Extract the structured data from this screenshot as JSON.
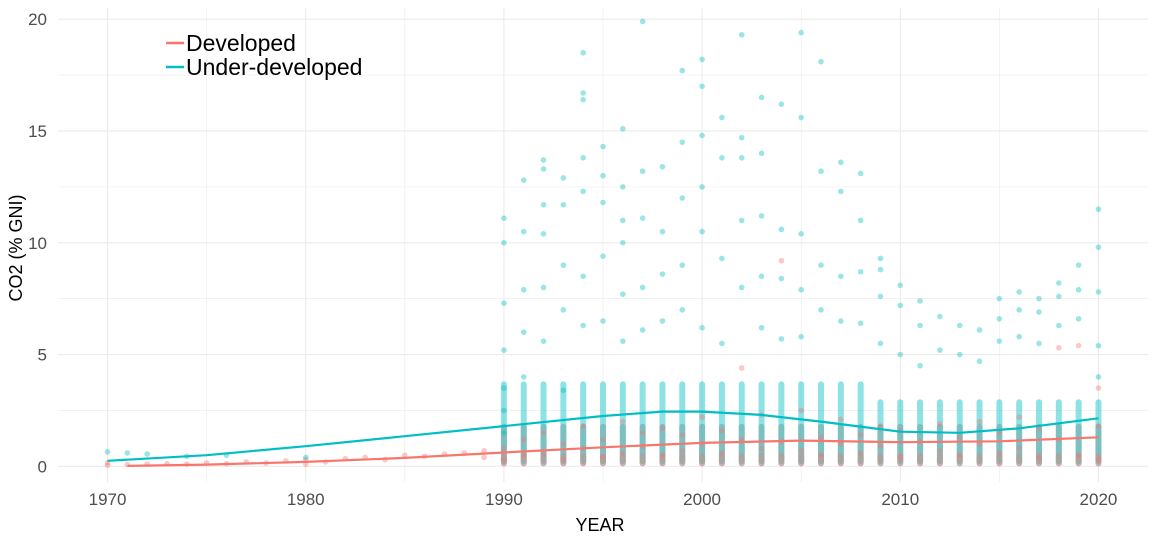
{
  "chart_data": {
    "type": "scatter",
    "xlabel": "YEAR",
    "ylabel": "CO2 (% GNI)",
    "xlim": [
      1967.5,
      2022.5
    ],
    "ylim": [
      -0.7,
      20.5
    ],
    "x_ticks": [
      "1970",
      "1980",
      "1990",
      "2000",
      "2010",
      "2020"
    ],
    "x_tick_values": [
      1970,
      1980,
      1990,
      2000,
      2010,
      2020
    ],
    "y_ticks": [
      "0",
      "5",
      "10",
      "15",
      "20"
    ],
    "y_tick_values": [
      0,
      5,
      10,
      15,
      20
    ],
    "grid": true,
    "legend_position": "top-left",
    "series": [
      {
        "name": "Developed",
        "color": "#F8766D",
        "trend": [
          [
            1971,
            0.02
          ],
          [
            1975,
            0.08
          ],
          [
            1980,
            0.2
          ],
          [
            1985,
            0.38
          ],
          [
            1990,
            0.62
          ],
          [
            1995,
            0.85
          ],
          [
            2000,
            1.05
          ],
          [
            2005,
            1.15
          ],
          [
            2010,
            1.08
          ],
          [
            2015,
            1.12
          ],
          [
            2020,
            1.3
          ]
        ],
        "points": [
          [
            1970,
            0.05
          ],
          [
            1970,
            0.15
          ],
          [
            1971,
            0.08
          ],
          [
            1972,
            0.1
          ],
          [
            1973,
            0.12
          ],
          [
            1974,
            0.1
          ],
          [
            1975,
            0.15
          ],
          [
            1976,
            0.12
          ],
          [
            1977,
            0.2
          ],
          [
            1978,
            0.15
          ],
          [
            1979,
            0.25
          ],
          [
            1980,
            0.1
          ],
          [
            1980,
            0.3
          ],
          [
            1981,
            0.2
          ],
          [
            1982,
            0.35
          ],
          [
            1983,
            0.4
          ],
          [
            1984,
            0.3
          ],
          [
            1985,
            0.5
          ],
          [
            1986,
            0.45
          ],
          [
            1987,
            0.55
          ],
          [
            1988,
            0.6
          ],
          [
            1989,
            0.7
          ],
          [
            1989,
            0.4
          ],
          [
            1990,
            0.3
          ],
          [
            1990,
            0.8
          ],
          [
            1991,
            1.2
          ],
          [
            1991,
            0.5
          ],
          [
            1992,
            0.6
          ],
          [
            1992,
            1.5
          ],
          [
            1993,
            0.3
          ],
          [
            1993,
            1.0
          ],
          [
            1994,
            0.8
          ],
          [
            1994,
            1.8
          ],
          [
            1995,
            0.4
          ],
          [
            1995,
            1.2
          ],
          [
            1996,
            0.6
          ],
          [
            1996,
            2.0
          ],
          [
            1997,
            0.9
          ],
          [
            1997,
            1.5
          ],
          [
            1998,
            0.5
          ],
          [
            1998,
            1.7
          ],
          [
            1999,
            0.7
          ],
          [
            1999,
            1.4
          ],
          [
            2000,
            1.0
          ],
          [
            2000,
            2.2
          ],
          [
            2001,
            0.6
          ],
          [
            2001,
            1.6
          ],
          [
            2002,
            1.2
          ],
          [
            2002,
            4.4
          ],
          [
            2003,
            0.8
          ],
          [
            2003,
            2.3
          ],
          [
            2004,
            9.2
          ],
          [
            2004,
            1.1
          ],
          [
            2005,
            0.7
          ],
          [
            2005,
            2.5
          ],
          [
            2006,
            1.3
          ],
          [
            2006,
            0.5
          ],
          [
            2007,
            1.0
          ],
          [
            2007,
            2.1
          ],
          [
            2008,
            0.6
          ],
          [
            2008,
            1.4
          ],
          [
            2009,
            0.9
          ],
          [
            2009,
            1.8
          ],
          [
            2010,
            0.4
          ],
          [
            2010,
            1.6
          ],
          [
            2011,
            1.1
          ],
          [
            2012,
            0.7
          ],
          [
            2012,
            1.9
          ],
          [
            2013,
            0.5
          ],
          [
            2013,
            1.3
          ],
          [
            2014,
            1.0
          ],
          [
            2014,
            2.0
          ],
          [
            2015,
            0.6
          ],
          [
            2015,
            1.5
          ],
          [
            2016,
            0.8
          ],
          [
            2016,
            2.2
          ],
          [
            2017,
            0.4
          ],
          [
            2017,
            1.7
          ],
          [
            2018,
            1.2
          ],
          [
            2018,
            5.3
          ],
          [
            2019,
            0.5
          ],
          [
            2019,
            5.4
          ],
          [
            2020,
            0.3
          ],
          [
            2020,
            1.8
          ],
          [
            2020,
            3.5
          ]
        ]
      },
      {
        "name": "Under-developed",
        "color": "#00BFC4",
        "trend": [
          [
            1970,
            0.25
          ],
          [
            1975,
            0.5
          ],
          [
            1980,
            0.9
          ],
          [
            1985,
            1.35
          ],
          [
            1990,
            1.8
          ],
          [
            1995,
            2.25
          ],
          [
            1998,
            2.45
          ],
          [
            2000,
            2.45
          ],
          [
            2003,
            2.3
          ],
          [
            2006,
            2.0
          ],
          [
            2010,
            1.55
          ],
          [
            2013,
            1.5
          ],
          [
            2016,
            1.7
          ],
          [
            2020,
            2.15
          ]
        ],
        "points": [
          [
            1970,
            0.65
          ],
          [
            1971,
            0.6
          ],
          [
            1972,
            0.55
          ],
          [
            1974,
            0.45
          ],
          [
            1976,
            0.5
          ],
          [
            1980,
            0.4
          ],
          [
            1990,
            11.1
          ],
          [
            1990,
            10.0
          ],
          [
            1990,
            7.3
          ],
          [
            1990,
            5.2
          ],
          [
            1990,
            3.5
          ],
          [
            1990,
            2.5
          ],
          [
            1990,
            1.5
          ],
          [
            1991,
            12.8
          ],
          [
            1991,
            10.5
          ],
          [
            1991,
            7.9
          ],
          [
            1991,
            6.0
          ],
          [
            1991,
            4.0
          ],
          [
            1992,
            13.7
          ],
          [
            1992,
            13.3
          ],
          [
            1992,
            11.7
          ],
          [
            1992,
            10.4
          ],
          [
            1992,
            8.0
          ],
          [
            1992,
            5.6
          ],
          [
            1993,
            12.9
          ],
          [
            1993,
            11.7
          ],
          [
            1993,
            9.0
          ],
          [
            1993,
            7.0
          ],
          [
            1993,
            3.4
          ],
          [
            1994,
            18.5
          ],
          [
            1994,
            16.7
          ],
          [
            1994,
            16.4
          ],
          [
            1994,
            13.8
          ],
          [
            1994,
            12.3
          ],
          [
            1994,
            8.5
          ],
          [
            1994,
            6.3
          ],
          [
            1995,
            14.3
          ],
          [
            1995,
            13.0
          ],
          [
            1995,
            11.8
          ],
          [
            1995,
            9.4
          ],
          [
            1995,
            6.5
          ],
          [
            1996,
            15.1
          ],
          [
            1996,
            12.5
          ],
          [
            1996,
            11.0
          ],
          [
            1996,
            10.0
          ],
          [
            1996,
            7.7
          ],
          [
            1996,
            5.6
          ],
          [
            1997,
            19.9
          ],
          [
            1997,
            13.2
          ],
          [
            1997,
            11.1
          ],
          [
            1997,
            8.0
          ],
          [
            1997,
            6.1
          ],
          [
            1998,
            13.4
          ],
          [
            1998,
            10.5
          ],
          [
            1998,
            8.6
          ],
          [
            1998,
            6.5
          ],
          [
            1999,
            17.7
          ],
          [
            1999,
            14.5
          ],
          [
            1999,
            12.0
          ],
          [
            1999,
            9.0
          ],
          [
            1999,
            7.0
          ],
          [
            2000,
            18.2
          ],
          [
            2000,
            17.0
          ],
          [
            2000,
            14.8
          ],
          [
            2000,
            12.5
          ],
          [
            2000,
            10.5
          ],
          [
            2000,
            6.2
          ],
          [
            2001,
            15.6
          ],
          [
            2001,
            13.8
          ],
          [
            2001,
            9.3
          ],
          [
            2001,
            5.5
          ],
          [
            2002,
            19.3
          ],
          [
            2002,
            14.7
          ],
          [
            2002,
            13.8
          ],
          [
            2002,
            11.0
          ],
          [
            2002,
            8.0
          ],
          [
            2003,
            16.5
          ],
          [
            2003,
            14.0
          ],
          [
            2003,
            11.2
          ],
          [
            2003,
            8.5
          ],
          [
            2003,
            6.2
          ],
          [
            2004,
            16.2
          ],
          [
            2004,
            10.6
          ],
          [
            2004,
            8.4
          ],
          [
            2004,
            5.7
          ],
          [
            2005,
            19.4
          ],
          [
            2005,
            15.6
          ],
          [
            2005,
            10.4
          ],
          [
            2005,
            7.9
          ],
          [
            2005,
            5.8
          ],
          [
            2006,
            18.1
          ],
          [
            2006,
            13.2
          ],
          [
            2006,
            9.0
          ],
          [
            2006,
            7.0
          ],
          [
            2007,
            13.6
          ],
          [
            2007,
            12.3
          ],
          [
            2007,
            8.5
          ],
          [
            2007,
            6.5
          ],
          [
            2008,
            13.1
          ],
          [
            2008,
            11.0
          ],
          [
            2008,
            8.7
          ],
          [
            2008,
            6.4
          ],
          [
            2009,
            9.3
          ],
          [
            2009,
            8.8
          ],
          [
            2009,
            7.6
          ],
          [
            2009,
            5.5
          ],
          [
            2010,
            8.1
          ],
          [
            2010,
            7.2
          ],
          [
            2010,
            5.0
          ],
          [
            2011,
            7.4
          ],
          [
            2011,
            6.3
          ],
          [
            2011,
            4.5
          ],
          [
            2012,
            6.7
          ],
          [
            2012,
            5.2
          ],
          [
            2013,
            6.3
          ],
          [
            2013,
            5.0
          ],
          [
            2014,
            6.1
          ],
          [
            2014,
            4.7
          ],
          [
            2015,
            7.5
          ],
          [
            2015,
            6.6
          ],
          [
            2015,
            5.6
          ],
          [
            2016,
            7.8
          ],
          [
            2016,
            7.0
          ],
          [
            2016,
            5.8
          ],
          [
            2017,
            7.5
          ],
          [
            2017,
            6.9
          ],
          [
            2017,
            5.5
          ],
          [
            2018,
            8.2
          ],
          [
            2018,
            7.6
          ],
          [
            2018,
            6.3
          ],
          [
            2019,
            9.0
          ],
          [
            2019,
            7.9
          ],
          [
            2019,
            6.6
          ],
          [
            2020,
            11.5
          ],
          [
            2020,
            9.8
          ],
          [
            2020,
            7.8
          ],
          [
            2020,
            5.4
          ],
          [
            2020,
            4.0
          ]
        ]
      }
    ]
  }
}
